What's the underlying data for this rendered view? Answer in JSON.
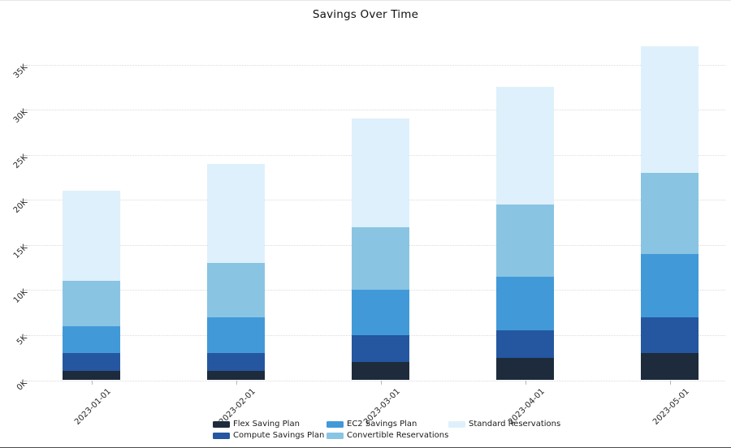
{
  "chart_data": {
    "type": "bar",
    "stacked": true,
    "title": "Savings Over Time",
    "xlabel": "",
    "ylabel": "",
    "categories": [
      "2023-01-01",
      "2023-02-01",
      "2023-03-01",
      "2023-04-01",
      "2023-05-01"
    ],
    "series": [
      {
        "name": "Flex Saving Plan",
        "color": "#1e2b3c",
        "values": [
          1000,
          1000,
          2000,
          2500,
          3000
        ]
      },
      {
        "name": "Compute Savings Plan",
        "color": "#2457a0",
        "values": [
          2000,
          2000,
          3000,
          3000,
          4000
        ]
      },
      {
        "name": "EC2 Savings Plan",
        "color": "#4199d8",
        "values": [
          3000,
          4000,
          5000,
          6000,
          7000
        ]
      },
      {
        "name": "Convertible Reservations",
        "color": "#8ac4e3",
        "values": [
          5000,
          6000,
          7000,
          8000,
          9000
        ]
      },
      {
        "name": "Standard Reservations",
        "color": "#def0fb",
        "values": [
          10000,
          11000,
          12000,
          13000,
          14000
        ]
      }
    ],
    "stack_totals": [
      21000,
      24000,
      29000,
      32500,
      37000
    ],
    "y_ticks": [
      "0K",
      "5K",
      "10K",
      "15K",
      "20K",
      "25K",
      "30K",
      "35K"
    ],
    "y_tick_values": [
      0,
      5000,
      10000,
      15000,
      20000,
      25000,
      30000,
      35000
    ],
    "ylim": [
      0,
      37500
    ],
    "grid": "horizontal-dotted",
    "legend_position": "bottom",
    "legend_columns": 3,
    "colors": {
      "gridline": "#dcdce1",
      "tick": "#c9c9c9",
      "text": "#262626",
      "title": "#111111"
    }
  }
}
